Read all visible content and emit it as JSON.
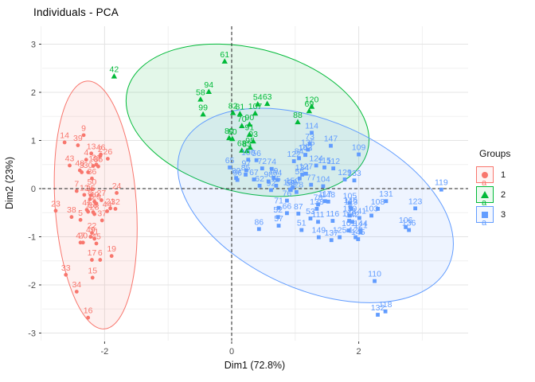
{
  "title": "Individuals - PCA",
  "colors": {
    "group1": "#F8766D",
    "group2": "#00BA38",
    "group3": "#619CFF",
    "grid_major": "#e4e4e4",
    "grid_minor": "#f0f0f0",
    "tick_text": "#4d4d4d",
    "axis_text": "#111111",
    "ref_line": "#222222"
  },
  "chart_data": {
    "type": "scatter",
    "title": "Individuals - PCA",
    "xlabel": "Dim1 (72.8%)",
    "ylabel": "Dim2 (23%)",
    "xlim": [
      -3.0,
      3.7
    ],
    "ylim": [
      -3.2,
      3.35
    ],
    "grid": true,
    "x_ticks": {
      "values": [
        -2,
        0,
        2
      ],
      "labels": [
        "-2",
        "0",
        "2"
      ]
    },
    "y_ticks": {
      "values": [
        3,
        2,
        1,
        0,
        -1,
        -2,
        -3
      ],
      "labels": [
        "3",
        "2",
        "1",
        "0",
        "-1",
        "-2",
        "-3"
      ]
    },
    "reference_lines": [
      {
        "axis": "x",
        "value": 0,
        "style": "dashed"
      },
      {
        "axis": "y",
        "value": 0,
        "style": "dashed"
      }
    ],
    "legend": {
      "title": "Groups",
      "position": "right",
      "key_glyph": "a",
      "entries": [
        {
          "label": "1",
          "color": "#F8766D",
          "shape": "circle"
        },
        {
          "label": "2",
          "color": "#00BA38",
          "shape": "triangle"
        },
        {
          "label": "3",
          "color": "#619CFF",
          "shape": "square"
        }
      ]
    },
    "ellipses": [
      {
        "group": "1",
        "color": "#F8766D",
        "cx": -2.14,
        "cy": -0.34,
        "rx": 0.64,
        "ry": 2.58,
        "angle": -4
      },
      {
        "group": "2",
        "color": "#00BA38",
        "cx": 0.25,
        "cy": 1.42,
        "rx": 1.95,
        "ry": 1.5,
        "angle": 14
      },
      {
        "group": "3",
        "color": "#619CFF",
        "cx": 1.32,
        "cy": -0.35,
        "rx": 2.3,
        "ry": 1.75,
        "angle": 24
      }
    ],
    "series": [
      {
        "name": "1",
        "color": "#F8766D",
        "shape": "circle",
        "points": [
          [
            1,
            -2.26,
            -0.48
          ],
          [
            2,
            -2.07,
            0.67
          ],
          [
            3,
            -2.36,
            0.34
          ],
          [
            4,
            -2.29,
            0.6
          ],
          [
            5,
            -2.38,
            -0.65
          ],
          [
            6,
            -2.07,
            -1.48
          ],
          [
            7,
            -2.44,
            -0.05
          ],
          [
            8,
            -2.23,
            -0.22
          ],
          [
            9,
            -2.33,
            1.11
          ],
          [
            10,
            -2.18,
            0.47
          ],
          [
            11,
            -2.16,
            -1.04
          ],
          [
            12,
            -2.32,
            -0.13
          ],
          [
            13,
            -2.21,
            0.73
          ],
          [
            14,
            -2.63,
            0.96
          ],
          [
            15,
            -2.19,
            -1.85
          ],
          [
            16,
            -2.26,
            -2.68
          ],
          [
            17,
            -2.2,
            -1.48
          ],
          [
            18,
            -2.18,
            -0.49
          ],
          [
            19,
            -1.89,
            -1.4
          ],
          [
            20,
            -2.34,
            -1.12
          ],
          [
            21,
            -1.91,
            -0.41
          ],
          [
            22,
            -2.2,
            -0.92
          ],
          [
            23,
            -2.77,
            -0.46
          ],
          [
            24,
            -1.81,
            -0.09
          ],
          [
            25,
            -2.22,
            -0.14
          ],
          [
            26,
            -1.95,
            0.62
          ],
          [
            27,
            -2.05,
            -0.24
          ],
          [
            28,
            -2.16,
            -0.53
          ],
          [
            29,
            -2.13,
            -0.31
          ],
          [
            30,
            -2.26,
            0.34
          ],
          [
            31,
            -2.13,
            0.5
          ],
          [
            32,
            -1.83,
            -0.42
          ],
          [
            33,
            -2.61,
            -1.79
          ],
          [
            34,
            -2.44,
            -2.14
          ],
          [
            35,
            -2.1,
            0.46
          ],
          [
            36,
            -2.2,
            0.21
          ],
          [
            37,
            -2.04,
            -0.66
          ],
          [
            38,
            -2.52,
            -0.59
          ],
          [
            39,
            -2.42,
            0.9
          ],
          [
            40,
            -2.16,
            -0.27
          ],
          [
            41,
            -2.28,
            -0.44
          ],
          [
            43,
            -2.55,
            0.48
          ],
          [
            44,
            -1.96,
            -0.47
          ],
          [
            45,
            -2.13,
            -1.14
          ],
          [
            46,
            -2.06,
            0.71
          ],
          [
            47,
            -2.38,
            -1.12
          ],
          [
            48,
            -2.39,
            0.38
          ],
          [
            49,
            -2.22,
            -1.0
          ],
          [
            50,
            -2.2,
            -0.01
          ]
        ]
      },
      {
        "name": "2",
        "color": "#00BA38",
        "shape": "triangle",
        "points": [
          [
            42,
            -1.85,
            2.33
          ],
          [
            54,
            0.41,
            1.75
          ],
          [
            58,
            -0.49,
            1.85
          ],
          [
            60,
            0.01,
            1.03
          ],
          [
            61,
            -0.11,
            2.64
          ],
          [
            63,
            0.56,
            1.76
          ],
          [
            68,
            0.16,
            0.79
          ],
          [
            69,
            1.22,
            1.61
          ],
          [
            70,
            0.16,
            1.3
          ],
          [
            80,
            -0.04,
            1.05
          ],
          [
            81,
            0.13,
            1.55
          ],
          [
            82,
            0.02,
            1.57
          ],
          [
            83,
            0.24,
            0.78
          ],
          [
            88,
            1.04,
            1.38
          ],
          [
            90,
            0.28,
            1.33
          ],
          [
            91,
            0.28,
            1.12
          ],
          [
            93,
            0.34,
            0.98
          ],
          [
            94,
            -0.36,
            2.01
          ],
          [
            95,
            0.29,
            0.85
          ],
          [
            99,
            -0.45,
            1.54
          ],
          [
            107,
            0.37,
            1.56
          ],
          [
            120,
            1.26,
            1.7
          ]
        ]
      },
      {
        "name": "3",
        "color": "#619CFF",
        "shape": "square",
        "points": [
          [
            51,
            1.1,
            -0.86
          ],
          [
            52,
            0.73,
            -0.59
          ],
          [
            53,
            1.24,
            -0.62
          ],
          [
            55,
            1.07,
            0.21
          ],
          [
            56,
            0.39,
            0.59
          ],
          [
            57,
            0.74,
            -0.77
          ],
          [
            59,
            0.93,
            -0.03
          ],
          [
            62,
            0.44,
            0.06
          ],
          [
            64,
            0.72,
            0.18
          ],
          [
            65,
            -0.03,
            0.44
          ],
          [
            66,
            0.87,
            -0.51
          ],
          [
            67,
            0.35,
            0.19
          ],
          [
            71,
            0.74,
            -0.4
          ],
          [
            72,
            0.48,
            0.42
          ],
          [
            73,
            1.23,
            0.93
          ],
          [
            74,
            0.63,
            0.41
          ],
          [
            75,
            0.7,
            0.06
          ],
          [
            76,
            0.87,
            -0.25
          ],
          [
            77,
            1.25,
            0.08
          ],
          [
            78,
            1.36,
            -0.33
          ],
          [
            79,
            0.66,
            0.22
          ],
          [
            84,
            1.06,
            0.63
          ],
          [
            85,
            0.22,
            0.29
          ],
          [
            86,
            0.43,
            -0.84
          ],
          [
            87,
            1.05,
            -0.52
          ],
          [
            89,
            0.07,
            0.22
          ],
          [
            92,
            0.62,
            -0.03
          ],
          [
            96,
            0.09,
            0.18
          ],
          [
            97,
            0.23,
            0.38
          ],
          [
            98,
            0.58,
            0.15
          ],
          [
            100,
            0.26,
            0.6
          ],
          [
            101,
            1.84,
            -0.87
          ],
          [
            102,
            1.16,
            0.7
          ],
          [
            103,
            2.2,
            -0.56
          ],
          [
            104,
            1.44,
            0.05
          ],
          [
            105,
            1.86,
            -0.3
          ],
          [
            106,
            2.74,
            -0.8
          ],
          [
            108,
            2.3,
            -0.42
          ],
          [
            109,
            2.0,
            0.71
          ],
          [
            110,
            2.25,
            -1.92
          ],
          [
            111,
            1.36,
            -0.69
          ],
          [
            112,
            1.6,
            0.42
          ],
          [
            113,
            1.88,
            -0.42
          ],
          [
            114,
            1.26,
            1.16
          ],
          [
            115,
            1.46,
            0.44
          ],
          [
            116,
            1.59,
            -0.67
          ],
          [
            117,
            1.47,
            -0.26
          ],
          [
            118,
            2.42,
            -2.55
          ],
          [
            119,
            3.3,
            -0.02
          ],
          [
            121,
            2.03,
            -0.91
          ],
          [
            122,
            0.98,
            0.57
          ],
          [
            123,
            2.89,
            -0.41
          ],
          [
            124,
            1.33,
            0.48
          ],
          [
            125,
            1.7,
            -1.01
          ],
          [
            126,
            1.95,
            -1.01
          ],
          [
            127,
            1.17,
            0.31
          ],
          [
            128,
            1.02,
            -0.07
          ],
          [
            129,
            1.78,
            0.19
          ],
          [
            130,
            1.86,
            -0.56
          ],
          [
            131,
            2.43,
            -0.26
          ],
          [
            132,
            2.3,
            -2.62
          ],
          [
            133,
            1.93,
            0.17
          ],
          [
            134,
            1.11,
            0.29
          ],
          [
            135,
            1.2,
            0.81
          ],
          [
            136,
            2.79,
            -0.86
          ],
          [
            137,
            1.57,
            -1.07
          ],
          [
            138,
            1.34,
            -0.42
          ],
          [
            139,
            0.92,
            -0.02
          ],
          [
            140,
            1.85,
            -0.67
          ],
          [
            141,
            2.01,
            -0.61
          ],
          [
            142,
            1.9,
            -0.69
          ],
          [
            143,
            1.16,
            0.7
          ],
          [
            144,
            2.03,
            -0.87
          ],
          [
            145,
            1.99,
            -1.05
          ],
          [
            146,
            1.87,
            -0.39
          ],
          [
            147,
            1.56,
            0.89
          ],
          [
            148,
            1.52,
            -0.27
          ],
          [
            149,
            1.37,
            -1.01
          ],
          [
            150,
            0.96,
            0.02
          ]
        ]
      }
    ]
  }
}
